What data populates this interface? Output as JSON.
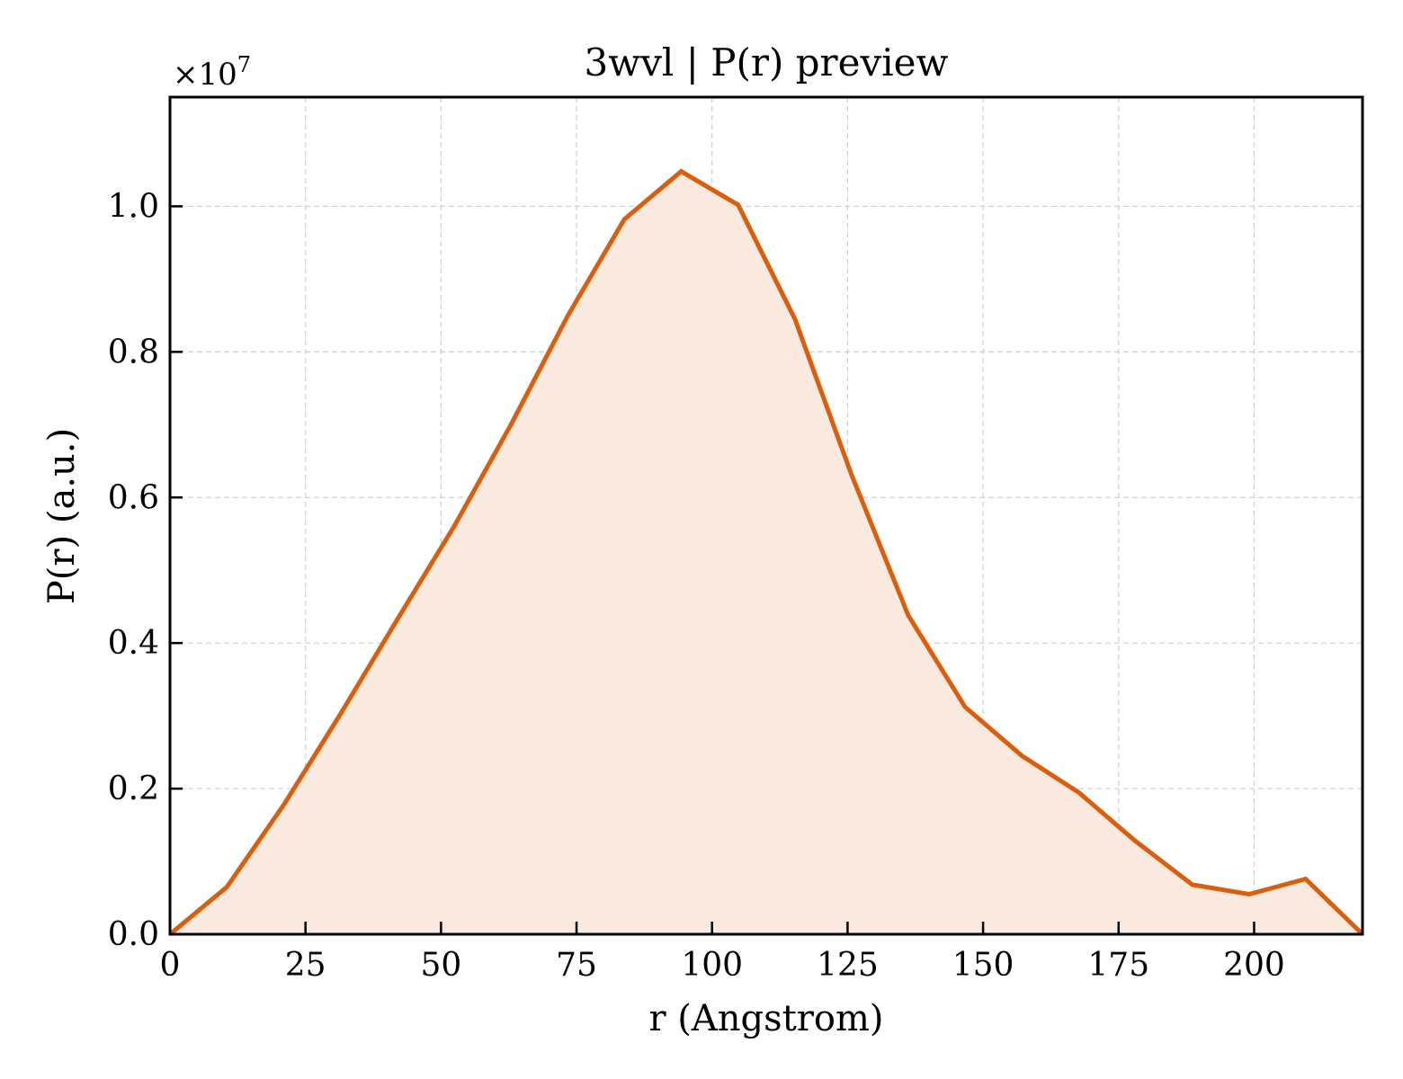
{
  "chart_data": {
    "type": "area",
    "title": "3wvl | P(r) preview",
    "xlabel": "r (Angstrom)",
    "ylabel": "P(r) (a.u.)",
    "y_offset_label": "×10",
    "y_offset_exponent": "7",
    "xlim": [
      0,
      220
    ],
    "ylim": [
      0,
      1.15
    ],
    "y_scale": 10000000,
    "x_ticks": [
      0,
      25,
      50,
      75,
      100,
      125,
      150,
      175,
      200
    ],
    "x_tick_labels": [
      "0",
      "25",
      "50",
      "75",
      "100",
      "125",
      "150",
      "175",
      "200"
    ],
    "y_ticks": [
      0.0,
      0.2,
      0.4,
      0.6,
      0.8,
      1.0
    ],
    "y_tick_labels": [
      "0.0",
      "0.2",
      "0.4",
      "0.6",
      "0.8",
      "1.0"
    ],
    "grid": true,
    "colors": {
      "line": "#d95f0e",
      "fill": "#f9e9de"
    },
    "series": [
      {
        "x": [
          0,
          10.5,
          21.0,
          31.4,
          41.9,
          52.4,
          62.9,
          73.4,
          83.8,
          94.3,
          104.8,
          115.3,
          125.7,
          136.2,
          146.7,
          157.2,
          167.6,
          178.1,
          188.6,
          199.1,
          209.5,
          220.0
        ],
        "values": [
          0.0,
          0.065,
          0.178,
          0.302,
          0.432,
          0.56,
          0.7,
          0.85,
          0.982,
          1.048,
          1.002,
          0.845,
          0.632,
          0.438,
          0.312,
          0.245,
          0.195,
          0.128,
          0.068,
          0.055,
          0.076,
          0.0
        ]
      }
    ]
  }
}
